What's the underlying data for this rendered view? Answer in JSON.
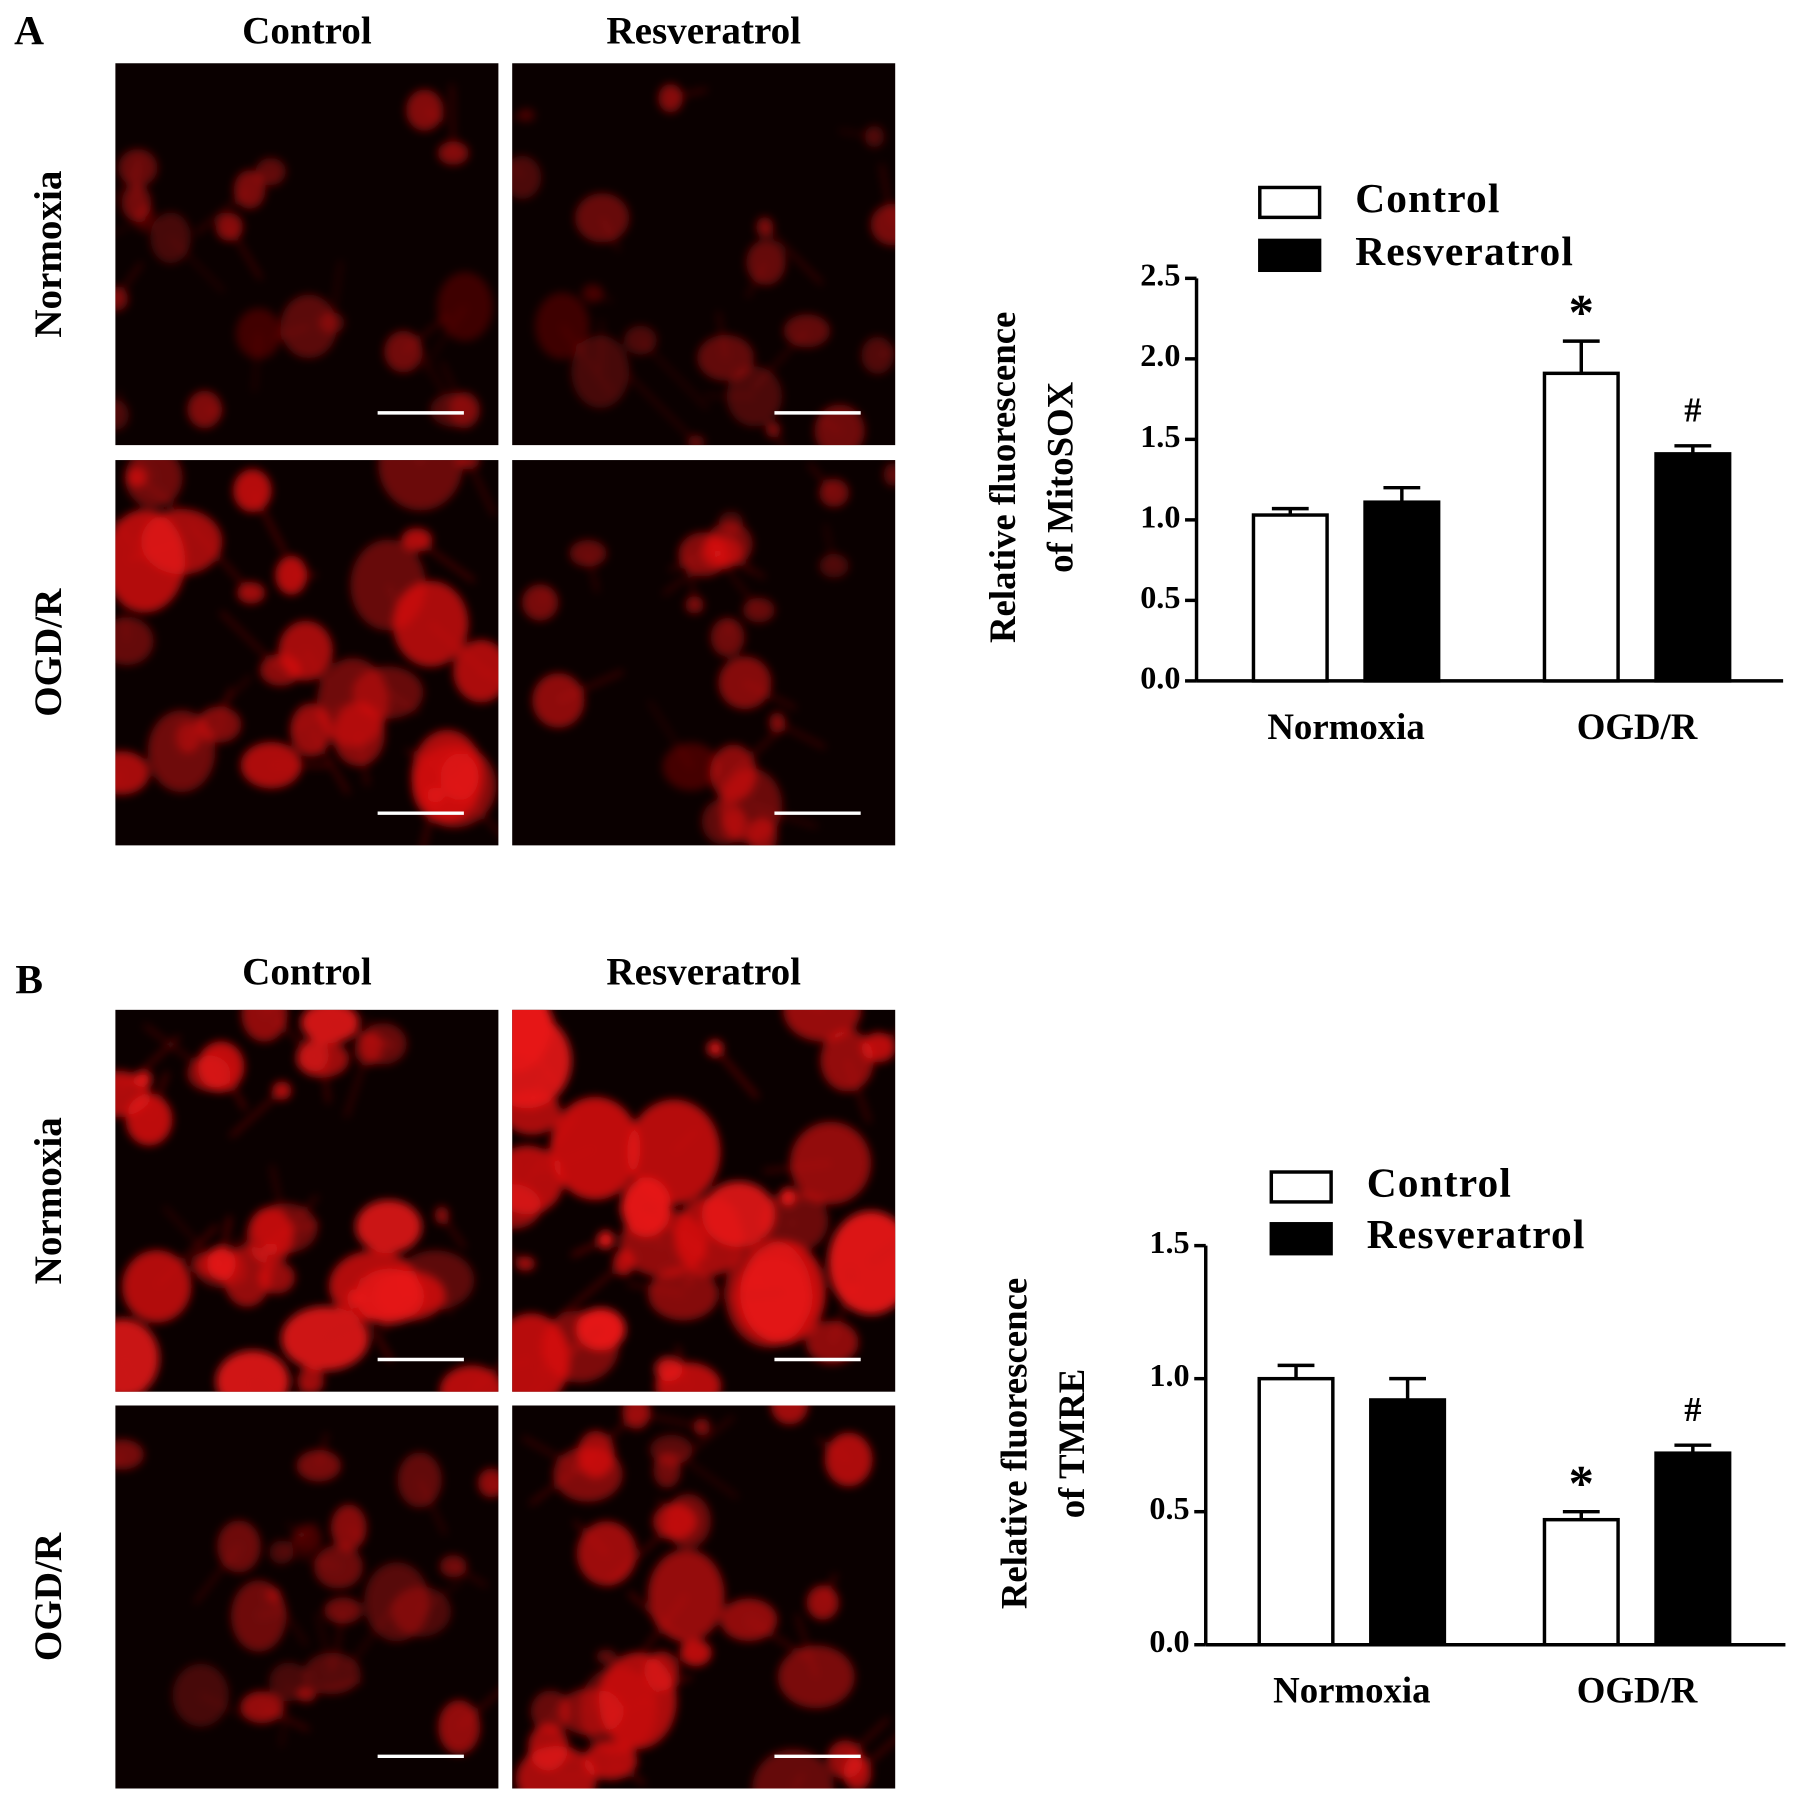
{
  "panels": [
    {
      "label": "A",
      "columns": [
        "Control",
        "Resveratrol"
      ],
      "rows": [
        "Normoxia",
        "OGD/R"
      ]
    },
    {
      "label": "B",
      "columns": [
        "Control",
        "Resveratrol"
      ],
      "rows": [
        "Normoxia",
        "OGD/R"
      ]
    }
  ],
  "chart_data": [
    {
      "type": "bar",
      "ylabel": [
        "Relative fluorescence",
        "of MitoSOX"
      ],
      "categories": [
        "Normoxia",
        "OGD/R"
      ],
      "series": [
        {
          "name": "Control",
          "color": "#ffffff",
          "values": [
            1.03,
            1.91
          ],
          "errors": [
            0.04,
            0.2
          ],
          "annotations": [
            null,
            "*"
          ]
        },
        {
          "name": "Resveratrol",
          "color": "#000000",
          "values": [
            1.11,
            1.41
          ],
          "errors": [
            0.09,
            0.05
          ],
          "annotations": [
            null,
            "#"
          ]
        }
      ],
      "ylim": [
        0,
        2.5
      ],
      "yticks": [
        {
          "value": 0,
          "label": "0.0"
        },
        0.5,
        {
          "value": 1,
          "label": "1.0"
        },
        1.5,
        {
          "value": 2,
          "label": "2.0"
        },
        2.5
      ]
    },
    {
      "type": "bar",
      "ylabel": [
        "Relative fluorescence",
        "of TMRE"
      ],
      "categories": [
        "Normoxia",
        "OGD/R"
      ],
      "series": [
        {
          "name": "Control",
          "color": "#ffffff",
          "values": [
            1.0,
            0.47
          ],
          "errors": [
            0.05,
            0.03
          ],
          "annotations": [
            null,
            "*"
          ]
        },
        {
          "name": "Resveratrol",
          "color": "#000000",
          "values": [
            0.92,
            0.72
          ],
          "errors": [
            0.08,
            0.03
          ],
          "annotations": [
            null,
            "#"
          ]
        }
      ],
      "ylim": [
        0,
        1.5
      ],
      "yticks": [
        {
          "value": 0,
          "label": "0.0"
        },
        0.5,
        {
          "value": 1,
          "label": "1.0"
        },
        1.5
      ]
    }
  ]
}
